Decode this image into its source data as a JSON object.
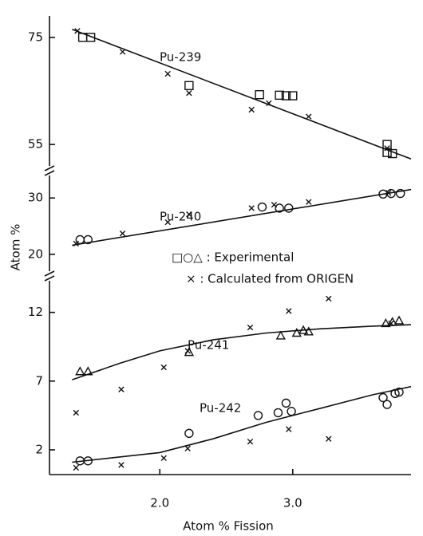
{
  "chart_data": {
    "type": "scatter",
    "xlabel": "Atom % Fission",
    "ylabel": "Atom %",
    "xlim": [
      1.17,
      3.89
    ],
    "xticks": [
      {
        "value": 2,
        "label": "2.0"
      },
      {
        "value": 3,
        "label": "3.0"
      }
    ],
    "color": "#111111",
    "legend": [
      "□○△ : Experimental",
      "× : Calculated from ORIGEN"
    ],
    "panels": [
      {
        "ylim": [
          51,
          79
        ],
        "yticks": [
          55,
          75
        ],
        "series": [
          {
            "name": "Pu-239",
            "marker": "square",
            "exp_x": [
              1.42,
              1.48,
              2.22,
              2.75,
              2.9,
              2.95,
              3.0,
              3.71,
              3.75,
              3.71
            ],
            "exp_y": [
              75,
              75,
              66,
              64.3,
              64.2,
              64.1,
              64.1,
              53.5,
              53.3,
              55
            ],
            "calc_x": [
              1.38,
              1.72,
              2.06,
              2.22,
              2.69,
              2.82,
              3.12,
              3.71
            ],
            "calc_y": [
              76.2,
              72.3,
              68.2,
              64.6,
              61.5,
              62.7,
              60.2,
              54.3
            ],
            "fit_x": [
              1.34,
              3.89
            ],
            "fit_y": [
              76.5,
              52.3
            ]
          }
        ]
      },
      {
        "ylim": [
          17,
          34
        ],
        "yticks": [
          20,
          30
        ],
        "series": [
          {
            "name": "Pu-240",
            "marker": "circle",
            "exp_x": [
              1.4,
              1.46,
              2.77,
              2.9,
              2.97,
              3.68,
              3.74,
              3.81
            ],
            "exp_y": [
              22.6,
              22.6,
              28.4,
              28.2,
              28.2,
              30.7,
              30.8,
              30.8
            ],
            "calc_x": [
              1.37,
              1.72,
              2.06,
              2.22,
              2.69,
              2.86,
              3.12,
              3.72
            ],
            "calc_y": [
              21.9,
              23.7,
              25.7,
              27.1,
              28.2,
              28.8,
              29.3,
              30.9
            ],
            "fit_x": [
              1.34,
              3.89
            ],
            "fit_y": [
              21.6,
              31.5
            ]
          }
        ]
      },
      {
        "ylim": [
          0.2,
          14.3
        ],
        "yticks": [
          2,
          7,
          12
        ],
        "series": [
          {
            "name": "Pu-241",
            "marker": "triangle",
            "exp_x": [
              1.4,
              1.46,
              2.22,
              2.91,
              3.03,
              3.08,
              3.12,
              3.7,
              3.75,
              3.8
            ],
            "exp_y": [
              7.7,
              7.7,
              9.1,
              10.3,
              10.5,
              10.7,
              10.6,
              11.2,
              11.3,
              11.4
            ],
            "calc_x": [
              1.37,
              1.71,
              2.03,
              2.21,
              2.68,
              2.97,
              3.27,
              3.74
            ],
            "calc_y": [
              4.7,
              6.4,
              8.0,
              9.2,
              10.9,
              12.1,
              13.0,
              11.2
            ],
            "fit_x": [
              1.34,
              1.7,
              2.0,
              2.4,
              2.8,
              3.2,
              3.6,
              3.89
            ],
            "fit_y": [
              7.1,
              8.3,
              9.2,
              10.0,
              10.5,
              10.8,
              11.0,
              11.1
            ]
          },
          {
            "name": "Pu-242",
            "marker": "circle",
            "exp_x": [
              1.4,
              1.46,
              2.22,
              2.74,
              2.89,
              2.95,
              2.99,
              3.68,
              3.71,
              3.77,
              3.8
            ],
            "exp_y": [
              1.2,
              1.2,
              3.2,
              4.5,
              4.7,
              5.4,
              4.8,
              5.8,
              5.3,
              6.1,
              6.2
            ],
            "calc_x": [
              1.37,
              1.71,
              2.03,
              2.21,
              2.68,
              2.97,
              3.27
            ],
            "calc_y": [
              0.7,
              0.9,
              1.4,
              2.1,
              2.6,
              3.5,
              2.8
            ],
            "fit_x": [
              1.34,
              2.0,
              2.4,
              2.8,
              3.2,
              3.6,
              3.89
            ],
            "fit_y": [
              1.1,
              1.8,
              2.8,
              4.0,
              5.0,
              6.0,
              6.6
            ]
          }
        ]
      }
    ]
  }
}
